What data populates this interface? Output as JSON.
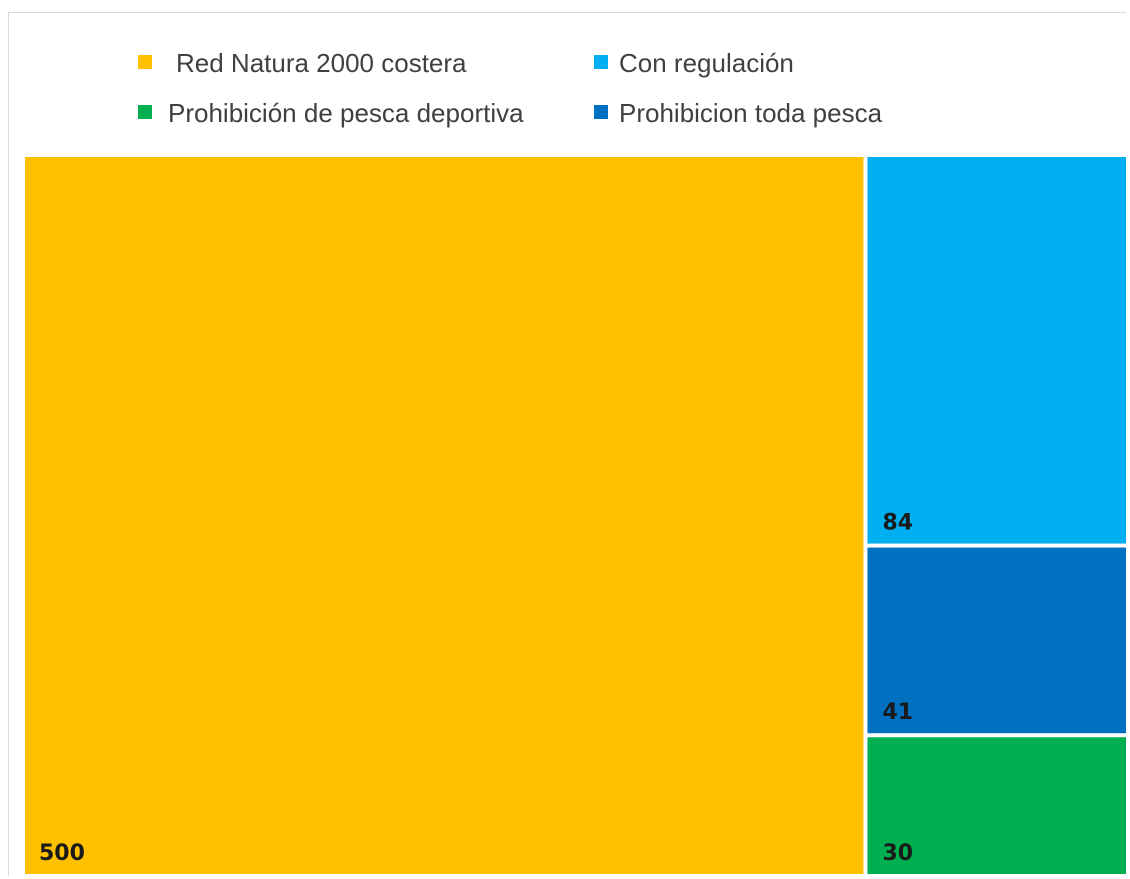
{
  "chart_data": {
    "type": "treemap",
    "title": "",
    "legend_position": "top",
    "items": [
      {
        "name": "Red Natura 2000 costera",
        "value": 500,
        "color": "#FFC000"
      },
      {
        "name": "Con regulación",
        "value": 84,
        "color": "#00B0F0"
      },
      {
        "name": "Prohibición de pesca deportiva",
        "value": 30,
        "color": "#00B050"
      },
      {
        "name": "Prohibicion toda pesca",
        "value": 41,
        "color": "#0070C0"
      }
    ]
  }
}
